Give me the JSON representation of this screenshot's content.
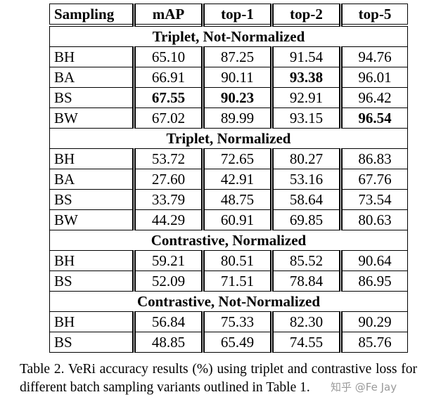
{
  "table": {
    "header": [
      "Sampling",
      "mAP",
      "top-1",
      "top-2",
      "top-5"
    ],
    "sections": [
      {
        "title": "Triplet, Not-Normalized",
        "rows": [
          [
            "BH",
            "65.10",
            "87.25",
            "91.54",
            "94.76"
          ],
          [
            "BA",
            "66.91",
            "90.11",
            "93.38",
            "96.01"
          ],
          [
            "BS",
            "67.55",
            "90.23",
            "92.91",
            "96.42"
          ],
          [
            "BW",
            "67.02",
            "89.99",
            "93.15",
            "96.54"
          ]
        ],
        "bold_cells": [
          [
            1,
            3
          ],
          [
            2,
            1
          ],
          [
            2,
            2
          ],
          [
            3,
            4
          ]
        ]
      },
      {
        "title": "Triplet, Normalized",
        "rows": [
          [
            "BH",
            "53.72",
            "72.65",
            "80.27",
            "86.83"
          ],
          [
            "BA",
            "27.60",
            "42.91",
            "53.16",
            "67.76"
          ],
          [
            "BS",
            "33.79",
            "48.75",
            "58.64",
            "73.54"
          ],
          [
            "BW",
            "44.29",
            "60.91",
            "69.85",
            "80.63"
          ]
        ],
        "bold_cells": []
      },
      {
        "title": "Contrastive, Normalized",
        "rows": [
          [
            "BH",
            "59.21",
            "80.51",
            "85.52",
            "90.64"
          ],
          [
            "BS",
            "52.09",
            "71.51",
            "78.84",
            "86.95"
          ]
        ],
        "bold_cells": []
      },
      {
        "title": "Contrastive, Not-Normalized",
        "rows": [
          [
            "BH",
            "56.84",
            "75.33",
            "82.30",
            "90.29"
          ],
          [
            "BS",
            "48.85",
            "65.49",
            "74.55",
            "85.76"
          ]
        ],
        "bold_cells": []
      }
    ]
  },
  "caption": "Table 2. VeRi accuracy results (%) using triplet and contrastive loss for different batch sampling variants outlined in Table 1.",
  "watermark": "知乎 @Fe Jay"
}
